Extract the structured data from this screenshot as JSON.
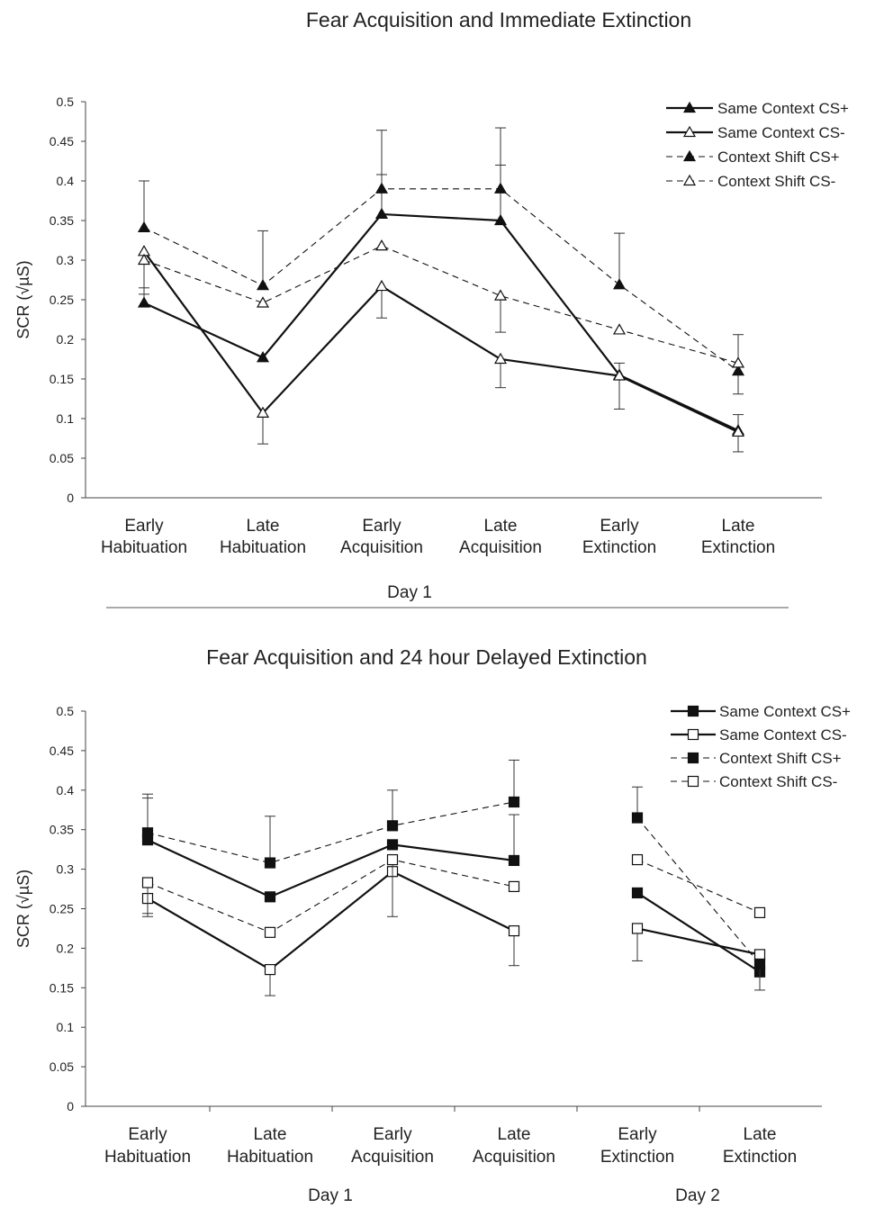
{
  "chart_data": [
    {
      "type": "line",
      "title": "Fear Acquisition and Immediate Extinction",
      "ylabel": "SCR (√µS)",
      "ylim": [
        0,
        0.5
      ],
      "yticks": [
        "0",
        "0.05",
        "0.1",
        "0.15",
        "0.2",
        "0.25",
        "0.3",
        "0.35",
        "0.4",
        "0.45",
        "0.5"
      ],
      "categories": [
        [
          "Early",
          "Habituation"
        ],
        [
          "Late",
          "Habituation"
        ],
        [
          "Early",
          "Acquisition"
        ],
        [
          "Late",
          "Acquisition"
        ],
        [
          "Early",
          "Extinction"
        ],
        [
          "Late",
          "Extinction"
        ]
      ],
      "group_labels": [
        "Day 1"
      ],
      "grid": false,
      "legend_position": "top-right",
      "series": [
        {
          "name": "Same Context CS+",
          "marker": "filled-triangle",
          "line": "solid",
          "values": [
            0.246,
            0.177,
            0.358,
            0.35,
            0.155,
            0.085
          ],
          "err_upper": [
            0.265,
            null,
            0.408,
            0.42,
            0.17,
            0.105
          ]
        },
        {
          "name": "Same Context CS-",
          "marker": "open-triangle",
          "line": "solid",
          "values": [
            0.311,
            0.107,
            0.267,
            0.175,
            0.154,
            0.083
          ],
          "err_lower": [
            null,
            0.068,
            0.227,
            0.139,
            0.112,
            0.058
          ]
        },
        {
          "name": "Context Shift CS+",
          "marker": "filled-triangle",
          "line": "dashed",
          "values": [
            0.341,
            0.268,
            0.39,
            0.39,
            0.269,
            0.16
          ],
          "err_upper": [
            0.4,
            0.337,
            0.464,
            0.467,
            0.334,
            null
          ],
          "err_lower": [
            null,
            null,
            null,
            null,
            null,
            0.131
          ]
        },
        {
          "name": "Context Shift CS-",
          "marker": "open-triangle",
          "line": "dashed",
          "values": [
            0.3,
            0.246,
            0.318,
            0.255,
            0.212,
            0.17
          ],
          "err_upper": [
            null,
            null,
            null,
            null,
            null,
            0.206
          ],
          "err_lower": [
            0.257,
            null,
            null,
            0.209,
            null,
            null
          ]
        }
      ]
    },
    {
      "type": "line",
      "title": "Fear Acquisition and 24 hour Delayed Extinction",
      "ylabel": "SCR (√µS)",
      "ylim": [
        0,
        0.5
      ],
      "yticks": [
        "0",
        "0.05",
        "0.1",
        "0.15",
        "0.2",
        "0.25",
        "0.3",
        "0.35",
        "0.4",
        "0.45",
        "0.5"
      ],
      "categories": [
        [
          "Early",
          "Habituation"
        ],
        [
          "Late",
          "Habituation"
        ],
        [
          "Early",
          "Acquisition"
        ],
        [
          "Late",
          "Acquisition"
        ],
        [
          "Early",
          "Extinction"
        ],
        [
          "Late",
          "Extinction"
        ]
      ],
      "group_labels": [
        "Day 1",
        "Day 2"
      ],
      "grid": false,
      "legend_position": "top-right",
      "series": [
        {
          "name": "Same Context CS+",
          "marker": "filled-square",
          "line": "solid",
          "values": [
            0.337,
            0.265,
            0.331,
            0.311,
            0.27,
            0.17
          ],
          "err_upper": [
            0.395,
            null,
            null,
            0.369,
            null,
            null
          ]
        },
        {
          "name": "Same Context CS-",
          "marker": "open-square",
          "line": "solid",
          "values": [
            0.263,
            0.173,
            0.297,
            0.222,
            0.225,
            0.192
          ],
          "err_lower": [
            0.244,
            0.14,
            null,
            0.178,
            0.184,
            0.147
          ]
        },
        {
          "name": "Context Shift CS+",
          "marker": "filled-square",
          "line": "dashed",
          "values": [
            0.346,
            0.308,
            0.355,
            0.385,
            0.365,
            0.18
          ],
          "err_upper": [
            0.39,
            0.367,
            0.4,
            0.438,
            0.404,
            null
          ]
        },
        {
          "name": "Context Shift CS-",
          "marker": "open-square",
          "line": "dashed",
          "values": [
            0.283,
            0.22,
            0.312,
            0.278,
            0.312,
            0.245
          ],
          "err_lower": [
            0.24,
            null,
            0.24,
            null,
            null,
            null
          ]
        }
      ]
    }
  ]
}
